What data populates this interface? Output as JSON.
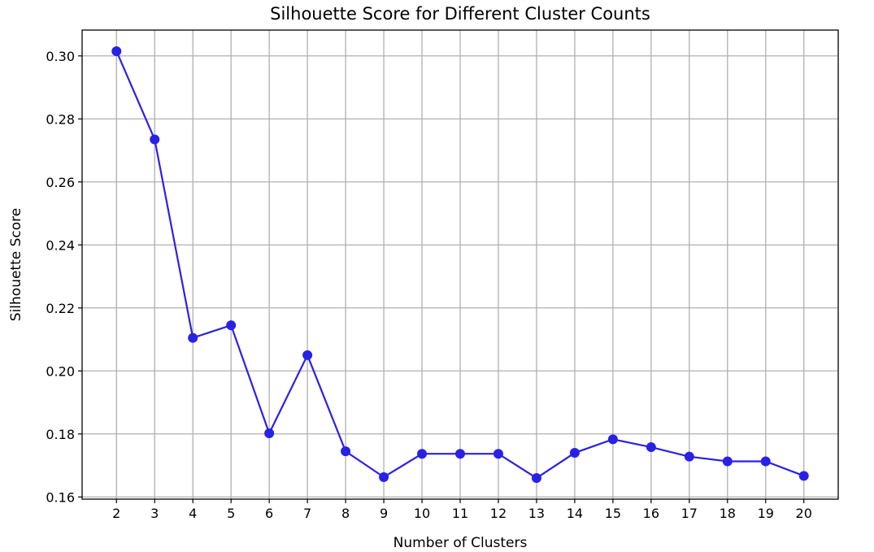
{
  "chart_data": {
    "type": "line",
    "title": "Silhouette Score for Different Cluster Counts",
    "xlabel": "Number of Clusters",
    "ylabel": "Silhouette Score",
    "x": [
      2,
      3,
      4,
      5,
      6,
      7,
      8,
      9,
      10,
      11,
      12,
      13,
      14,
      15,
      16,
      17,
      18,
      19,
      20
    ],
    "series": [
      {
        "values": [
          0.3015,
          0.2735,
          0.2105,
          0.2145,
          0.1802,
          0.205,
          0.1745,
          0.1663,
          0.1737,
          0.1737,
          0.1737,
          0.166,
          0.174,
          0.1783,
          0.1758,
          0.1728,
          0.1713,
          0.1713,
          0.1667
        ],
        "color": "#2a21e6",
        "marker": "circle"
      }
    ],
    "xticks": [
      "2",
      "3",
      "4",
      "5",
      "6",
      "7",
      "8",
      "9",
      "10",
      "11",
      "12",
      "13",
      "14",
      "15",
      "16",
      "17",
      "18",
      "19",
      "20"
    ],
    "yticks": [
      0.16,
      0.18,
      0.2,
      0.22,
      0.24,
      0.26,
      0.28,
      0.3
    ],
    "ytick_labels": [
      "0.16",
      "0.18",
      "0.20",
      "0.22",
      "0.24",
      "0.26",
      "0.28",
      "0.30"
    ],
    "xlim": [
      1.1,
      20.9
    ],
    "ylim": [
      0.1593,
      0.3082
    ],
    "grid": true
  }
}
